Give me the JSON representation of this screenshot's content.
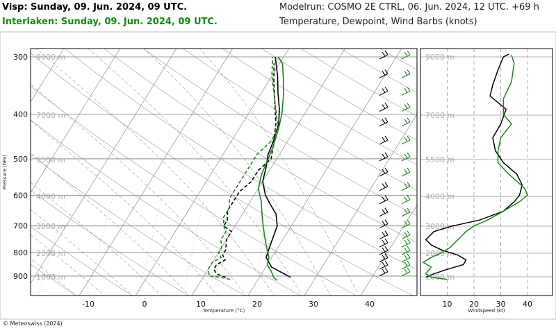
{
  "header": {
    "visp_title": "Visp: Sunday, 09. Jun. 2024, 09 UTC.",
    "interlaken_title": "Interlaken: Sunday, 09. Jun. 2024, 09 UTC.",
    "model_run": "Modelrun: COSMO 2E CTRL, 06. Jun. 2024, 12 UTC. +69 h",
    "variables": "Temperature, Dewpoint, Wind Barbs (knots)"
  },
  "footer": {
    "copyright": "© Meteoswiss (2024)"
  },
  "colors": {
    "visp": "#000000",
    "interlaken": "#138a13",
    "grid": "#9a9a9a"
  },
  "chart_data": [
    {
      "type": "line",
      "subtype": "skew-t",
      "xlabel": "Temperature (°C)",
      "ylabel": "Pressure (hPa)",
      "x_ticks": [
        -10,
        0,
        10,
        20,
        30,
        40
      ],
      "y_ticks": [
        300,
        400,
        500,
        600,
        700,
        800,
        900
      ],
      "altitude_labels": [
        "9000 m",
        "7000 m",
        "5500 m",
        "4000 m",
        "3000 m",
        "2000 m",
        "1000 m"
      ],
      "xlim": [
        -20,
        48
      ],
      "ylim": [
        960,
        290
      ],
      "series": [
        {
          "name": "Visp",
          "kind": "temperature",
          "style": "solid",
          "points": [
            [
              25.5,
              905
            ],
            [
              21,
              860
            ],
            [
              19,
              820
            ],
            [
              18.5,
              780
            ],
            [
              18,
              740
            ],
            [
              17.5,
              700
            ],
            [
              16,
              660
            ],
            [
              14,
              630
            ],
            [
              12,
              600
            ],
            [
              10,
              560
            ],
            [
              9,
              520
            ],
            [
              8,
              490
            ],
            [
              7.5,
              460
            ],
            [
              6.5,
              420
            ],
            [
              5,
              390
            ],
            [
              3,
              360
            ],
            [
              1,
              330
            ],
            [
              -1.5,
              300
            ]
          ]
        },
        {
          "name": "Visp",
          "kind": "dewpoint",
          "style": "dashed",
          "points": [
            [
              14,
              905
            ],
            [
              12,
              890
            ],
            [
              11,
              870
            ],
            [
              11,
              850
            ],
            [
              12,
              830
            ],
            [
              11,
              810
            ],
            [
              11,
              790
            ],
            [
              10,
              750
            ],
            [
              10,
              720
            ],
            [
              8,
              700
            ],
            [
              8,
              680
            ],
            [
              7,
              650
            ],
            [
              7,
              620
            ],
            [
              7,
              590
            ],
            [
              8,
              560
            ],
            [
              8,
              530
            ],
            [
              9,
              500
            ],
            [
              8,
              470
            ],
            [
              6,
              420
            ],
            [
              3,
              370
            ],
            [
              1,
              340
            ],
            [
              -1,
              310
            ]
          ]
        },
        {
          "name": "Interlaken",
          "kind": "temperature",
          "style": "solid",
          "points": [
            [
              23.5,
              920
            ],
            [
              22.5,
              905
            ],
            [
              21.5,
              880
            ],
            [
              20,
              850
            ],
            [
              19.5,
              820
            ],
            [
              18,
              780
            ],
            [
              16.5,
              740
            ],
            [
              15,
              700
            ],
            [
              13.5,
              660
            ],
            [
              12,
              620
            ],
            [
              10,
              580
            ],
            [
              9,
              540
            ],
            [
              8.5,
              500
            ],
            [
              8,
              470
            ],
            [
              7,
              430
            ],
            [
              6,
              400
            ],
            [
              4,
              360
            ],
            [
              2,
              330
            ],
            [
              0.5,
              310
            ],
            [
              -1,
              300
            ]
          ]
        },
        {
          "name": "Interlaken",
          "kind": "dewpoint",
          "style": "dashed",
          "points": [
            [
              15,
              915
            ],
            [
              13,
              905
            ],
            [
              11,
              900
            ],
            [
              10,
              870
            ],
            [
              10,
              840
            ],
            [
              11,
              820
            ],
            [
              10,
              800
            ],
            [
              10,
              780
            ],
            [
              9,
              750
            ],
            [
              9,
              720
            ],
            [
              8,
              700
            ],
            [
              7,
              670
            ],
            [
              7,
              640
            ],
            [
              6,
              610
            ],
            [
              6,
              580
            ],
            [
              6,
              550
            ],
            [
              6,
              520
            ],
            [
              6,
              490
            ],
            [
              7,
              460
            ],
            [
              7,
              430
            ],
            [
              5,
              400
            ],
            [
              3,
              370
            ],
            [
              0,
              330
            ],
            [
              -2,
              300
            ]
          ]
        }
      ]
    },
    {
      "type": "line",
      "subtype": "wind-profile",
      "xlabel": "Windspeed (kt)",
      "x_ticks": [
        10,
        20,
        30,
        40
      ],
      "altitude_labels": [
        "9000 m",
        "7000 m",
        "5500 m",
        "4000 m",
        "3000 m",
        "2000 m",
        "1000 m"
      ],
      "xlim": [
        0,
        47
      ],
      "series": [
        {
          "name": "Visp",
          "points": [
            [
              2,
              905
            ],
            [
              5,
              890
            ],
            [
              10,
              870
            ],
            [
              16,
              850
            ],
            [
              17,
              830
            ],
            [
              14,
              810
            ],
            [
              8,
              790
            ],
            [
              4,
              770
            ],
            [
              2,
              750
            ],
            [
              5,
              720
            ],
            [
              12,
              700
            ],
            [
              22,
              680
            ],
            [
              31,
              650
            ],
            [
              35,
              620
            ],
            [
              37,
              600
            ],
            [
              38,
              570
            ],
            [
              36,
              540
            ],
            [
              31,
              510
            ],
            [
              28,
              480
            ],
            [
              27,
              450
            ],
            [
              30,
              420
            ],
            [
              32,
              390
            ],
            [
              26,
              365
            ],
            [
              27,
              345
            ],
            [
              29,
              320
            ],
            [
              31,
              300
            ],
            [
              33,
              296
            ]
          ]
        },
        {
          "name": "Interlaken",
          "points": [
            [
              10,
              915
            ],
            [
              4,
              905
            ],
            [
              2,
              890
            ],
            [
              4,
              860
            ],
            [
              1,
              840
            ],
            [
              4,
              820
            ],
            [
              8,
              800
            ],
            [
              11,
              780
            ],
            [
              14,
              750
            ],
            [
              17,
              720
            ],
            [
              20,
              700
            ],
            [
              25,
              680
            ],
            [
              31,
              650
            ],
            [
              37,
              620
            ],
            [
              40,
              600
            ],
            [
              39,
              580
            ],
            [
              33,
              540
            ],
            [
              29,
              510
            ],
            [
              29,
              480
            ],
            [
              30,
              450
            ],
            [
              34,
              420
            ],
            [
              31,
              400
            ],
            [
              31,
              370
            ],
            [
              34,
              340
            ],
            [
              35,
              310
            ],
            [
              34,
              297
            ]
          ]
        }
      ]
    }
  ]
}
